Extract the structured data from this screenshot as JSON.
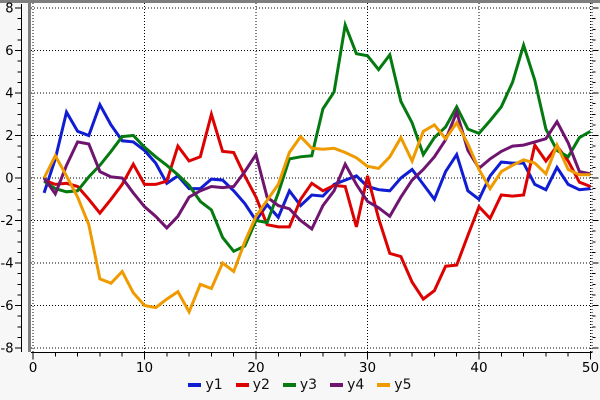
{
  "frame": {
    "outer_bg": "#f7f7f7",
    "plot_bg": "#ffffff",
    "border_gray": "#7f7f7f",
    "axis_color": "#000000",
    "grid_color": "#000000",
    "tick_label_color": "#000000"
  },
  "chart_data": {
    "type": "line",
    "title": "",
    "xlabel": "",
    "ylabel": "",
    "xlim": [
      0,
      50
    ],
    "ylim": [
      -8,
      8
    ],
    "x_ticks": [
      0,
      10,
      20,
      30,
      40,
      50
    ],
    "y_ticks": [
      -8,
      -6,
      -4,
      -2,
      0,
      2,
      4,
      6,
      8
    ],
    "x_minor_step": 2,
    "y_minor_step": 0.5,
    "grid": "dotted",
    "legend_position": "bottom-center",
    "x_start": 1,
    "x_step": 1,
    "series": [
      {
        "name": "y1",
        "color": "#101dd2",
        "values": [
          -0.7,
          0.9,
          3.1,
          2.2,
          2.0,
          3.45,
          2.5,
          1.75,
          1.7,
          1.3,
          0.7,
          -0.25,
          0.1,
          -0.5,
          -0.5,
          -0.05,
          -0.1,
          -0.6,
          -1.2,
          -2.0,
          -1.25,
          -1.85,
          -0.6,
          -1.3,
          -0.8,
          -0.85,
          -0.3,
          -0.1,
          0.1,
          -0.4,
          -0.55,
          -0.6,
          0.0,
          0.4,
          -0.3,
          -1.0,
          0.3,
          1.1,
          -0.6,
          -1.0,
          0.1,
          0.75,
          0.7,
          0.7,
          -0.3,
          -0.55,
          0.5,
          -0.3,
          -0.55,
          -0.5
        ]
      },
      {
        "name": "y2",
        "color": "#dd0202",
        "values": [
          -0.1,
          -0.3,
          -0.25,
          -0.4,
          -1.0,
          -1.65,
          -1.0,
          -0.3,
          0.65,
          -0.3,
          -0.3,
          -0.15,
          1.5,
          0.8,
          1.0,
          3.0,
          1.25,
          1.2,
          0.1,
          -0.9,
          -2.2,
          -2.3,
          -2.3,
          -1.0,
          -0.25,
          -0.6,
          -0.35,
          -0.4,
          -2.3,
          0.1,
          -1.9,
          -3.55,
          -3.7,
          -4.9,
          -5.7,
          -5.3,
          -4.15,
          -4.1,
          -2.7,
          -1.35,
          -1.9,
          -0.8,
          -0.85,
          -0.8,
          1.55,
          0.8,
          1.5,
          0.8,
          -0.2,
          -0.4
        ]
      },
      {
        "name": "y3",
        "color": "#047a10",
        "values": [
          -0.15,
          -0.5,
          -0.65,
          -0.6,
          0.05,
          0.6,
          1.25,
          1.95,
          2.0,
          1.45,
          1.0,
          0.6,
          0.15,
          -0.35,
          -1.1,
          -1.5,
          -2.8,
          -3.45,
          -3.2,
          -2.0,
          -2.1,
          -0.7,
          0.9,
          1.0,
          1.05,
          3.25,
          4.05,
          7.2,
          5.85,
          5.75,
          5.1,
          5.8,
          3.6,
          2.6,
          1.1,
          1.9,
          2.4,
          3.35,
          2.3,
          2.1,
          2.7,
          3.35,
          4.5,
          6.25,
          4.6,
          2.3,
          1.3,
          1.0,
          1.9,
          2.2
        ]
      },
      {
        "name": "y4",
        "color": "#70156f",
        "values": [
          0.0,
          -0.75,
          0.6,
          1.7,
          1.6,
          0.3,
          0.05,
          0.0,
          -0.7,
          -1.35,
          -1.8,
          -2.35,
          -1.8,
          -0.9,
          -0.6,
          -0.4,
          -0.45,
          -0.4,
          0.3,
          1.1,
          -0.9,
          -1.3,
          -1.45,
          -2.0,
          -2.4,
          -1.3,
          -0.6,
          0.65,
          -0.3,
          -1.1,
          -1.4,
          -1.8,
          -0.9,
          -0.1,
          0.4,
          1.0,
          1.8,
          3.1,
          1.3,
          0.45,
          0.9,
          1.25,
          1.5,
          1.55,
          1.7,
          1.85,
          2.65,
          1.65,
          0.3,
          0.2
        ]
      },
      {
        "name": "y5",
        "color": "#ef9b00",
        "values": [
          0.0,
          1.05,
          0.1,
          -0.9,
          -2.2,
          -4.75,
          -4.95,
          -4.4,
          -5.4,
          -6.0,
          -6.1,
          -5.7,
          -5.35,
          -6.3,
          -5.0,
          -5.2,
          -4.0,
          -4.4,
          -3.0,
          -1.8,
          -1.05,
          -0.3,
          1.2,
          1.95,
          1.4,
          1.35,
          1.4,
          1.2,
          0.95,
          0.55,
          0.45,
          1.0,
          1.9,
          0.8,
          2.2,
          2.5,
          1.85,
          2.6,
          1.6,
          0.4,
          -0.5,
          0.3,
          0.6,
          0.85,
          0.7,
          0.2,
          1.55,
          0.4,
          0.15,
          0.15
        ]
      }
    ]
  },
  "legend": {
    "items": [
      {
        "label": "y1",
        "color": "#101dd2"
      },
      {
        "label": "y2",
        "color": "#dd0202"
      },
      {
        "label": "y3",
        "color": "#047a10"
      },
      {
        "label": "y4",
        "color": "#70156f"
      },
      {
        "label": "y5",
        "color": "#ef9b00"
      }
    ]
  }
}
